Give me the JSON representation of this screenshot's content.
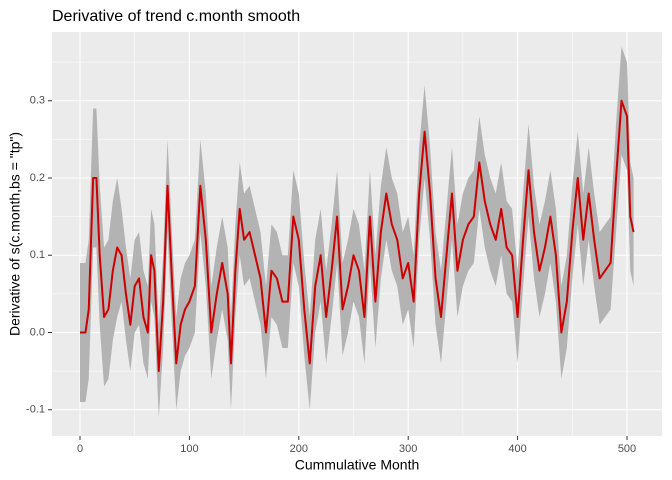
{
  "chart_data": {
    "type": "line",
    "title": "Derivative of trend c.month smooth",
    "x_label": "Cummulative Month",
    "y_label": "Derivative of s(c.month,bs = \"tp\")",
    "color": "#cc0000",
    "band_color": "#b3b3b3",
    "grid": true,
    "xlim": [
      -25.6,
      532
    ],
    "ylim": [
      -0.134,
      0.389
    ],
    "xticks": [
      0,
      100,
      200,
      300,
      400,
      500
    ],
    "yticks": [
      -0.1,
      {
        "value": 0,
        "label": "0.0"
      },
      0.1,
      0.2,
      0.3
    ],
    "xminor": [
      50,
      150,
      250,
      350,
      450
    ],
    "yminor": [
      -0.05,
      0.05,
      0.15,
      0.25,
      0.35
    ],
    "x": [
      0,
      5,
      8,
      12,
      15,
      18,
      22,
      26,
      30,
      34,
      38,
      42,
      46,
      50,
      54,
      58,
      62,
      65,
      68,
      72,
      76,
      80,
      84,
      88,
      92,
      96,
      100,
      105,
      110,
      115,
      120,
      125,
      130,
      135,
      138,
      142,
      146,
      150,
      155,
      160,
      165,
      170,
      175,
      180,
      185,
      190,
      195,
      200,
      205,
      210,
      215,
      220,
      225,
      230,
      235,
      240,
      245,
      250,
      255,
      260,
      265,
      270,
      275,
      280,
      285,
      290,
      295,
      300,
      305,
      310,
      315,
      320,
      325,
      330,
      335,
      340,
      345,
      350,
      355,
      360,
      365,
      370,
      375,
      380,
      385,
      390,
      395,
      400,
      405,
      410,
      415,
      420,
      425,
      430,
      435,
      440,
      445,
      450,
      455,
      460,
      465,
      470,
      475,
      480,
      485,
      490,
      495,
      500,
      503,
      506
    ],
    "values": [
      0,
      0,
      0.03,
      0.2,
      0.2,
      0.1,
      0.02,
      0.03,
      0.08,
      0.11,
      0.1,
      0.05,
      0.01,
      0.06,
      0.07,
      0.02,
      0,
      0.1,
      0.08,
      -0.05,
      0.04,
      0.19,
      0.07,
      -0.04,
      0.01,
      0.03,
      0.04,
      0.06,
      0.19,
      0.12,
      0,
      0.05,
      0.09,
      0.05,
      -0.04,
      0.08,
      0.16,
      0.12,
      0.13,
      0.1,
      0.07,
      0,
      0.08,
      0.07,
      0.04,
      0.04,
      0.15,
      0.12,
      0.03,
      -0.04,
      0.06,
      0.1,
      0.02,
      0.08,
      0.15,
      0.03,
      0.06,
      0.1,
      0.08,
      0.02,
      0.15,
      0.04,
      0.13,
      0.18,
      0.14,
      0.12,
      0.07,
      0.09,
      0.04,
      0.18,
      0.26,
      0.18,
      0.07,
      0.02,
      0.1,
      0.18,
      0.08,
      0.12,
      0.14,
      0.15,
      0.22,
      0.17,
      0.14,
      0.12,
      0.16,
      0.11,
      0.1,
      0.02,
      0.12,
      0.21,
      0.13,
      0.08,
      0.11,
      0.15,
      0.1,
      0,
      0.04,
      0.13,
      0.2,
      0.12,
      0.18,
      0.12,
      0.07,
      0.08,
      0.09,
      0.2,
      0.3,
      0.28,
      0.15,
      0.13
    ],
    "lower": [
      -0.09,
      -0.09,
      -0.06,
      0.11,
      0.11,
      0.01,
      -0.07,
      -0.06,
      -0.01,
      0.02,
      0.04,
      -0.01,
      -0.05,
      0,
      0.01,
      -0.04,
      -0.06,
      0.04,
      0.02,
      -0.11,
      -0.02,
      0.13,
      0.01,
      -0.1,
      -0.05,
      -0.03,
      -0.02,
      0,
      0.13,
      0.06,
      -0.06,
      -0.01,
      0.03,
      -0.01,
      -0.1,
      0.02,
      0.1,
      0.06,
      0.07,
      0.04,
      0.01,
      -0.06,
      0.02,
      0.01,
      -0.02,
      -0.02,
      0.09,
      0.06,
      -0.03,
      -0.1,
      0,
      0.04,
      -0.04,
      0.02,
      0.09,
      -0.03,
      0,
      0.04,
      0.02,
      -0.04,
      0.09,
      -0.02,
      0.07,
      0.12,
      0.08,
      0.06,
      0.01,
      0.03,
      -0.02,
      0.12,
      0.2,
      0.12,
      0.01,
      -0.04,
      0.04,
      0.12,
      0.02,
      0.06,
      0.08,
      0.09,
      0.16,
      0.11,
      0.08,
      0.06,
      0.1,
      0.05,
      0.04,
      -0.04,
      0.06,
      0.15,
      0.07,
      0.02,
      0.05,
      0.09,
      0.04,
      -0.06,
      -0.02,
      0.07,
      0.14,
      0.06,
      0.12,
      0.06,
      0.01,
      0.02,
      0.03,
      0.13,
      0.23,
      0.21,
      0.08,
      0.06
    ],
    "upper": [
      0.09,
      0.09,
      0.12,
      0.29,
      0.29,
      0.19,
      0.11,
      0.12,
      0.17,
      0.2,
      0.16,
      0.11,
      0.07,
      0.12,
      0.13,
      0.08,
      0.06,
      0.16,
      0.14,
      0.01,
      0.1,
      0.25,
      0.13,
      0.02,
      0.07,
      0.09,
      0.1,
      0.12,
      0.25,
      0.18,
      0.06,
      0.11,
      0.15,
      0.11,
      0.02,
      0.14,
      0.22,
      0.18,
      0.19,
      0.16,
      0.13,
      0.06,
      0.14,
      0.13,
      0.1,
      0.1,
      0.21,
      0.18,
      0.09,
      0.02,
      0.12,
      0.16,
      0.08,
      0.14,
      0.21,
      0.09,
      0.12,
      0.16,
      0.14,
      0.08,
      0.21,
      0.1,
      0.19,
      0.24,
      0.2,
      0.18,
      0.13,
      0.15,
      0.1,
      0.24,
      0.32,
      0.24,
      0.13,
      0.08,
      0.16,
      0.24,
      0.14,
      0.18,
      0.2,
      0.21,
      0.28,
      0.23,
      0.2,
      0.18,
      0.22,
      0.17,
      0.16,
      0.08,
      0.18,
      0.27,
      0.19,
      0.14,
      0.17,
      0.21,
      0.16,
      0.06,
      0.1,
      0.19,
      0.26,
      0.18,
      0.24,
      0.18,
      0.13,
      0.14,
      0.15,
      0.27,
      0.37,
      0.35,
      0.22,
      0.2
    ]
  }
}
